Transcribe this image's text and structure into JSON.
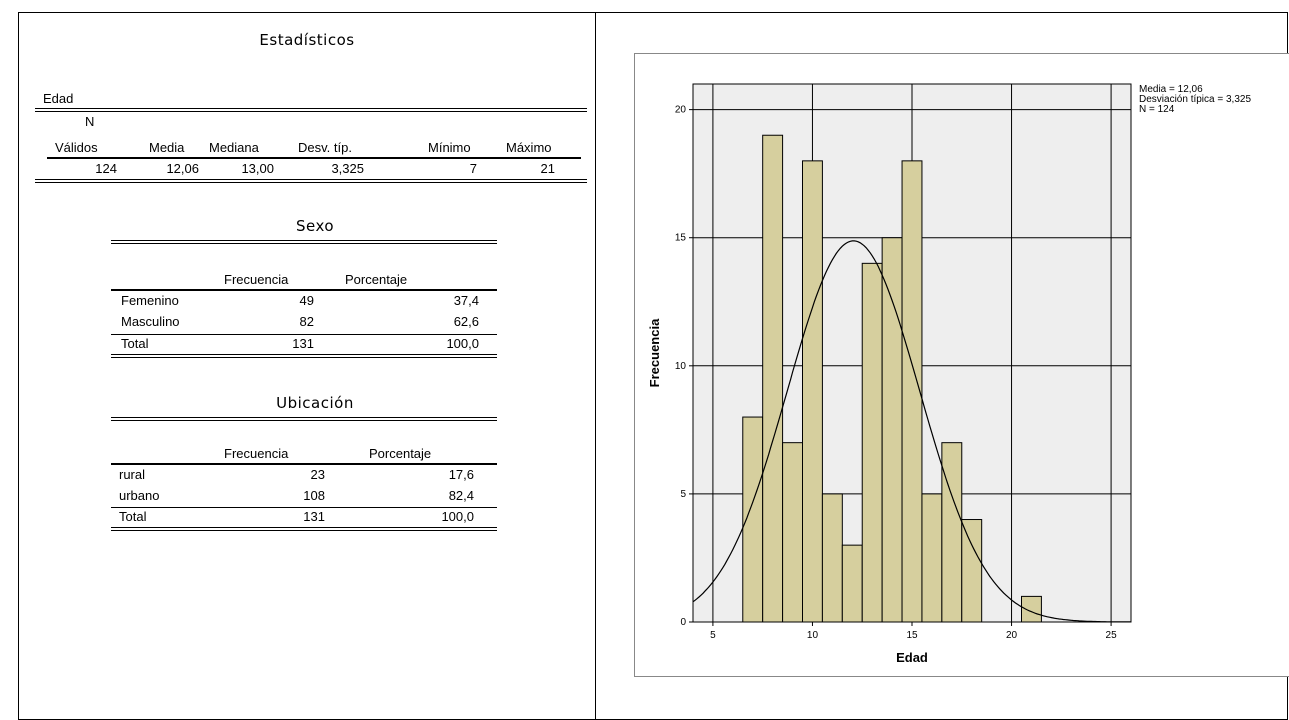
{
  "estadisticos": {
    "title": "Estadísticos",
    "variable": "Edad",
    "n_label": "N",
    "headers": [
      "Válidos",
      "Media",
      "Mediana",
      "Desv. típ.",
      "Mínimo",
      "Máximo"
    ],
    "values": [
      "124",
      "12,06",
      "13,00",
      "3,325",
      "7",
      "21"
    ]
  },
  "sexo": {
    "title": "Sexo",
    "headers": [
      "Frecuencia",
      "Porcentaje"
    ],
    "rows": [
      {
        "label": "Femenino",
        "freq": "49",
        "pct": "37,4"
      },
      {
        "label": "Masculino",
        "freq": "82",
        "pct": "62,6"
      },
      {
        "label": "Total",
        "freq": "131",
        "pct": "100,0"
      }
    ]
  },
  "ubicacion": {
    "title": "Ubicación",
    "headers": [
      "Frecuencia",
      "Porcentaje"
    ],
    "rows": [
      {
        "label": "rural",
        "freq": "23",
        "pct": "17,6"
      },
      {
        "label": "urbano",
        "freq": "108",
        "pct": "82,4"
      },
      {
        "label": "Total",
        "freq": "131",
        "pct": "100,0"
      }
    ]
  },
  "chart_data": {
    "type": "bar",
    "subtype": "histogram",
    "xlabel": "Edad",
    "ylabel": "Frecuencia",
    "xlim": [
      4,
      26
    ],
    "ylim": [
      0,
      21
    ],
    "x_ticks": [
      5,
      10,
      15,
      20,
      25
    ],
    "y_ticks": [
      0,
      5,
      10,
      15,
      20
    ],
    "bin_width": 1,
    "bins": [
      {
        "x": 7,
        "count": 8
      },
      {
        "x": 8,
        "count": 19
      },
      {
        "x": 9,
        "count": 7
      },
      {
        "x": 10,
        "count": 18
      },
      {
        "x": 11,
        "count": 5
      },
      {
        "x": 12,
        "count": 3
      },
      {
        "x": 13,
        "count": 14
      },
      {
        "x": 14,
        "count": 15
      },
      {
        "x": 15,
        "count": 18
      },
      {
        "x": 16,
        "count": 5
      },
      {
        "x": 17,
        "count": 7
      },
      {
        "x": 18,
        "count": 4
      },
      {
        "x": 21,
        "count": 1
      }
    ],
    "normal_curve": {
      "mean": 12.06,
      "sd": 3.325,
      "n": 124
    },
    "legend_lines": [
      "Media = 12,06",
      "Desviación típica = 3,325",
      "N = 124"
    ],
    "legend_position": "top-right",
    "grid": true,
    "colors": {
      "bar": "#d6cf9e",
      "plot_bg": "#eeeeee",
      "curve": "#000000"
    }
  }
}
